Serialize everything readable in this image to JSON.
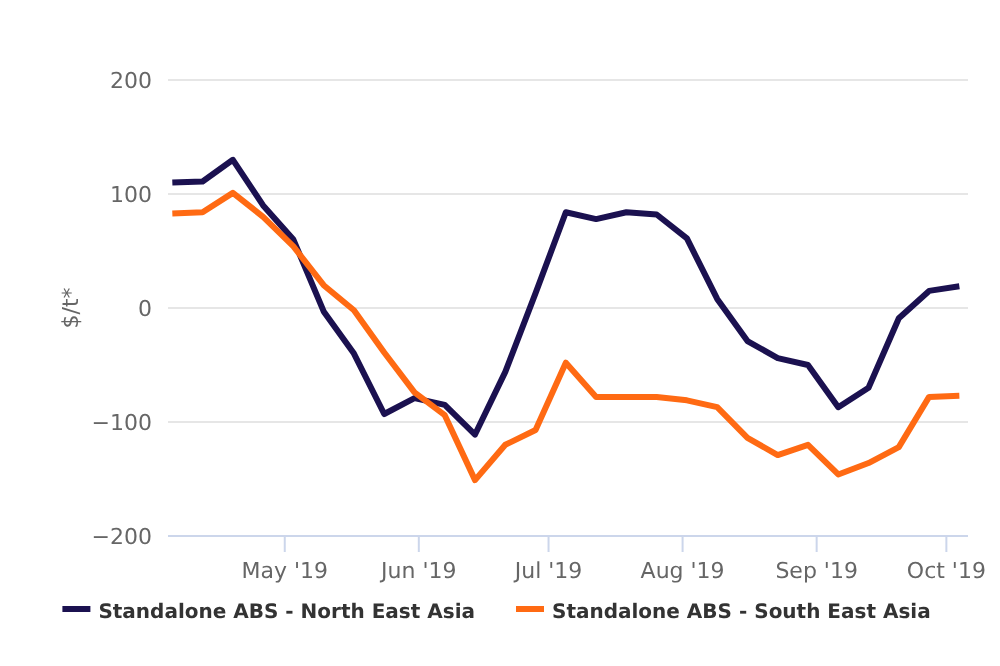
{
  "chart_data": {
    "type": "line",
    "ylabel": "$/t*",
    "x": [
      "2019-04-05",
      "2019-04-12",
      "2019-04-19",
      "2019-04-26",
      "2019-05-03",
      "2019-05-10",
      "2019-05-17",
      "2019-05-24",
      "2019-05-31",
      "2019-06-07",
      "2019-06-14",
      "2019-06-21",
      "2019-06-28",
      "2019-07-05",
      "2019-07-12",
      "2019-07-19",
      "2019-07-26",
      "2019-08-02",
      "2019-08-09",
      "2019-08-16",
      "2019-08-23",
      "2019-08-30",
      "2019-09-06",
      "2019-09-13",
      "2019-09-20",
      "2019-09-27",
      "2019-10-04"
    ],
    "series": [
      {
        "name": "Standalone ABS - North East Asia",
        "color": "#1b1150",
        "values": [
          110,
          111,
          130,
          90,
          60,
          -3,
          -40,
          -93,
          -79,
          -85,
          -111,
          -56,
          13,
          84,
          78,
          84,
          82,
          61,
          8,
          -29,
          -44,
          -50,
          -87,
          -70,
          -9,
          15,
          19
        ]
      },
      {
        "name": "Standalone ABS - South East Asia",
        "color": "#ff6a13",
        "values": [
          83,
          84,
          101,
          80,
          54,
          20,
          -2,
          -39,
          -74,
          -94,
          -151,
          -120,
          -107,
          -48,
          -78,
          -78,
          -78,
          -81,
          -87,
          -114,
          -129,
          -120,
          -146,
          -136,
          -122,
          -78,
          -77
        ]
      }
    ],
    "xlim": [
      "2019-04-04",
      "2019-10-06"
    ],
    "xticks": [
      {
        "value": "2019-05-01",
        "label": "May '19"
      },
      {
        "value": "2019-06-01",
        "label": "Jun '19"
      },
      {
        "value": "2019-07-01",
        "label": "Jul '19"
      },
      {
        "value": "2019-08-01",
        "label": "Aug '19"
      },
      {
        "value": "2019-09-01",
        "label": "Sep '19"
      },
      {
        "value": "2019-10-01",
        "label": "Oct '19"
      }
    ],
    "ylim": [
      -200,
      200
    ],
    "yticks": [
      -200,
      -100,
      0,
      100,
      200
    ],
    "grid": "y",
    "legend": "bottom",
    "marker": "none",
    "line_style": "solid"
  }
}
